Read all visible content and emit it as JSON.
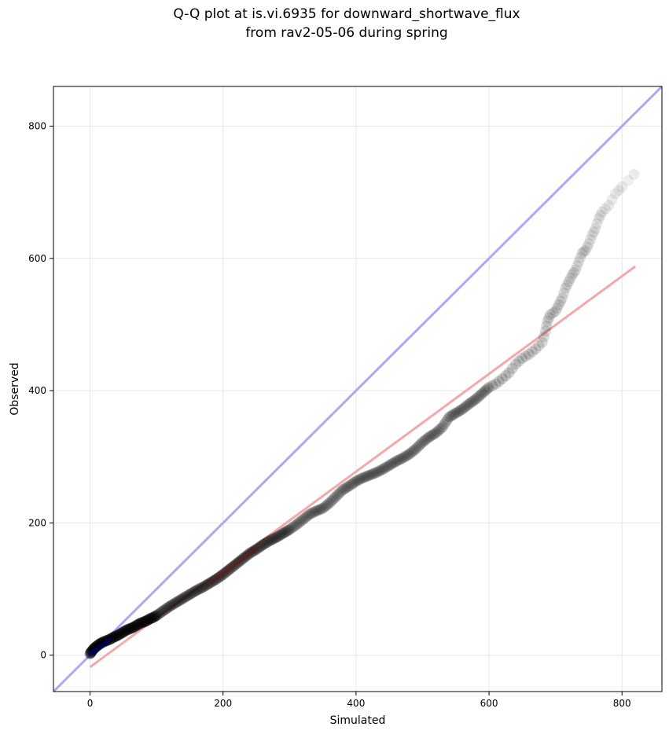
{
  "chart_data": {
    "type": "scatter",
    "title_line1": "Q-Q plot at is.vi.6935 for downward_shortwave_flux",
    "title_line2": "from rav2-05-06 during spring",
    "xlabel": "Simulated",
    "ylabel": "Observed",
    "xlim": [
      -55,
      860
    ],
    "ylim": [
      -55,
      860
    ],
    "xticks": [
      0,
      200,
      400,
      600,
      800
    ],
    "yticks": [
      0,
      200,
      400,
      600,
      800
    ],
    "grid": true,
    "colors": {
      "points": "#000000",
      "identity_line": "#aaaaf4",
      "fit_line": "#f4a8aa",
      "low_points": "#00008b",
      "fit_overlay": "#8b0000"
    },
    "identity_line": [
      [
        -55,
        -55
      ],
      [
        860,
        860
      ]
    ],
    "fit_line": [
      [
        0,
        -18
      ],
      [
        820,
        588
      ]
    ],
    "points": [
      [
        0,
        2
      ],
      [
        2,
        5
      ],
      [
        5,
        9
      ],
      [
        8,
        12
      ],
      [
        12,
        15
      ],
      [
        16,
        18
      ],
      [
        20,
        20
      ],
      [
        25,
        22
      ],
      [
        30,
        24
      ],
      [
        35,
        27
      ],
      [
        40,
        29
      ],
      [
        45,
        32
      ],
      [
        50,
        35
      ],
      [
        55,
        38
      ],
      [
        60,
        40
      ],
      [
        65,
        42
      ],
      [
        70,
        45
      ],
      [
        75,
        48
      ],
      [
        80,
        50
      ],
      [
        85,
        52
      ],
      [
        90,
        55
      ],
      [
        95,
        57
      ],
      [
        100,
        60
      ],
      [
        110,
        67
      ],
      [
        120,
        74
      ],
      [
        130,
        80
      ],
      [
        140,
        86
      ],
      [
        150,
        92
      ],
      [
        160,
        98
      ],
      [
        170,
        103
      ],
      [
        180,
        109
      ],
      [
        190,
        115
      ],
      [
        200,
        122
      ],
      [
        210,
        130
      ],
      [
        220,
        138
      ],
      [
        230,
        146
      ],
      [
        240,
        154
      ],
      [
        250,
        160
      ],
      [
        260,
        167
      ],
      [
        270,
        173
      ],
      [
        280,
        178
      ],
      [
        290,
        184
      ],
      [
        300,
        190
      ],
      [
        310,
        197
      ],
      [
        320,
        205
      ],
      [
        330,
        213
      ],
      [
        340,
        218
      ],
      [
        350,
        222
      ],
      [
        360,
        230
      ],
      [
        370,
        240
      ],
      [
        380,
        250
      ],
      [
        390,
        256
      ],
      [
        400,
        263
      ],
      [
        410,
        268
      ],
      [
        420,
        272
      ],
      [
        430,
        276
      ],
      [
        440,
        281
      ],
      [
        450,
        287
      ],
      [
        460,
        293
      ],
      [
        470,
        298
      ],
      [
        480,
        304
      ],
      [
        490,
        312
      ],
      [
        500,
        322
      ],
      [
        510,
        330
      ],
      [
        520,
        336
      ],
      [
        530,
        345
      ],
      [
        540,
        360
      ],
      [
        550,
        366
      ],
      [
        560,
        372
      ],
      [
        570,
        380
      ],
      [
        580,
        387
      ],
      [
        590,
        396
      ],
      [
        600,
        405
      ],
      [
        610,
        410
      ],
      [
        620,
        418
      ],
      [
        630,
        427
      ],
      [
        640,
        440
      ],
      [
        650,
        449
      ],
      [
        660,
        455
      ],
      [
        670,
        463
      ],
      [
        680,
        473
      ],
      [
        685,
        490
      ],
      [
        688,
        505
      ],
      [
        692,
        515
      ],
      [
        700,
        520
      ],
      [
        705,
        530
      ],
      [
        710,
        540
      ],
      [
        715,
        555
      ],
      [
        720,
        565
      ],
      [
        725,
        575
      ],
      [
        730,
        582
      ],
      [
        735,
        595
      ],
      [
        740,
        608
      ],
      [
        745,
        612
      ],
      [
        750,
        622
      ],
      [
        755,
        635
      ],
      [
        760,
        645
      ],
      [
        765,
        660
      ],
      [
        770,
        670
      ],
      [
        780,
        680
      ],
      [
        790,
        698
      ],
      [
        800,
        708
      ],
      [
        818,
        727
      ]
    ]
  }
}
